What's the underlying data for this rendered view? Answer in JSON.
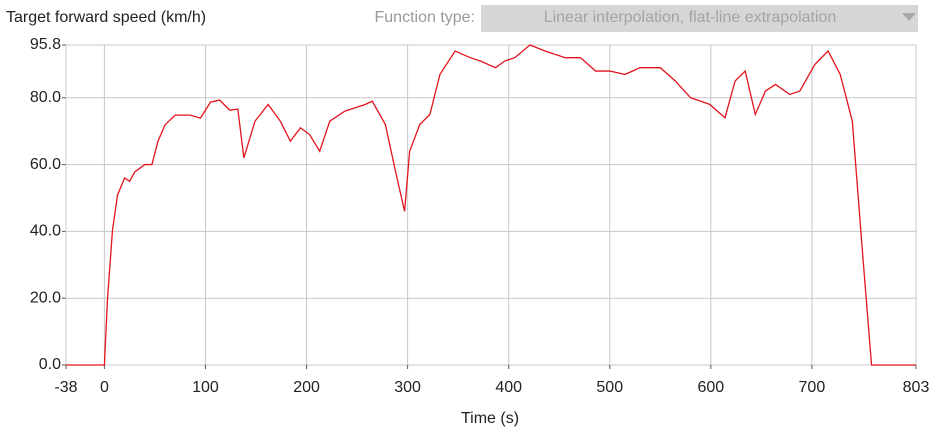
{
  "chart_data": {
    "type": "line",
    "ylabel": "Target forward speed (km/h)",
    "xlabel": "Time (s)",
    "function_type_label": "Function type:",
    "function_type_value": "Linear interpolation, flat-line extrapolation",
    "x": [
      -38,
      0,
      3,
      8,
      13,
      20,
      25,
      30,
      40,
      47,
      53,
      60,
      70,
      85,
      95,
      105,
      114,
      124,
      132,
      138,
      149,
      162,
      174,
      184,
      194,
      203,
      213,
      223,
      238,
      258,
      265,
      278,
      288,
      297,
      302,
      312,
      322,
      332,
      347,
      362,
      372,
      387,
      396,
      406,
      421,
      436,
      456,
      471,
      486,
      500,
      515,
      530,
      550,
      565,
      580,
      590,
      599,
      614,
      624,
      634,
      644,
      654,
      664,
      678,
      688,
      703,
      716,
      728,
      740,
      750,
      759,
      803
    ],
    "series": [
      {
        "color": "#e3141c",
        "values": [
          0,
          0,
          19.5,
          40.4,
          50.9,
          56,
          55,
          57.8,
          60,
          60,
          67,
          71.9,
          74.8,
          74.8,
          73.9,
          78.7,
          79.3,
          76.3,
          76.6,
          62,
          73,
          78,
          73,
          67,
          71,
          69,
          64,
          73,
          76,
          78,
          79,
          72,
          58,
          46,
          64,
          72,
          75,
          87,
          94,
          92,
          91,
          89,
          91,
          92,
          95.8,
          94,
          92,
          92,
          88,
          88,
          87,
          89,
          89,
          85,
          80,
          79,
          78,
          74,
          85,
          88,
          75,
          82,
          84,
          81,
          82,
          90,
          94,
          87,
          73,
          34,
          0,
          0
        ]
      }
    ],
    "xlim": [
      -38,
      803
    ],
    "ylim": [
      0,
      95.8
    ],
    "xticks": [
      -38,
      0,
      100,
      200,
      300,
      400,
      500,
      600,
      700,
      803
    ],
    "yticks": [
      {
        "value": 0,
        "label": "0.0"
      },
      {
        "value": 20,
        "label": "20.0"
      },
      {
        "value": 40,
        "label": "40.0"
      },
      {
        "value": 60,
        "label": "60.0"
      },
      {
        "value": 80,
        "label": "80.0"
      },
      95.8
    ],
    "grid": true
  }
}
